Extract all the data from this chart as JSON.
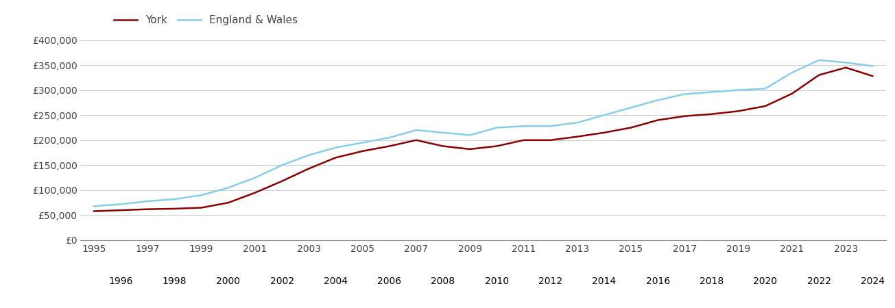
{
  "york_years": [
    1995,
    1996,
    1997,
    1998,
    1999,
    2000,
    2001,
    2002,
    2003,
    2004,
    2005,
    2006,
    2007,
    2008,
    2009,
    2010,
    2011,
    2012,
    2013,
    2014,
    2015,
    2016,
    2017,
    2018,
    2019,
    2020,
    2021,
    2022,
    2023,
    2024
  ],
  "york_values": [
    58000,
    60000,
    62000,
    63000,
    65000,
    75000,
    95000,
    118000,
    143000,
    165000,
    178000,
    188000,
    200000,
    188000,
    182000,
    188000,
    200000,
    200000,
    207000,
    215000,
    225000,
    240000,
    248000,
    252000,
    258000,
    268000,
    293000,
    330000,
    345000,
    328000
  ],
  "ew_years": [
    1995,
    1996,
    1997,
    1998,
    1999,
    2000,
    2001,
    2002,
    2003,
    2004,
    2005,
    2006,
    2007,
    2008,
    2009,
    2010,
    2011,
    2012,
    2013,
    2014,
    2015,
    2016,
    2017,
    2018,
    2019,
    2020,
    2021,
    2022,
    2023,
    2024
  ],
  "ew_values": [
    68000,
    72000,
    78000,
    82000,
    90000,
    105000,
    125000,
    150000,
    170000,
    185000,
    195000,
    205000,
    220000,
    215000,
    210000,
    225000,
    228000,
    228000,
    235000,
    250000,
    265000,
    280000,
    292000,
    296000,
    300000,
    303000,
    335000,
    360000,
    355000,
    348000
  ],
  "york_color": "#8B0000",
  "ew_color": "#87CEEB",
  "york_label": "York",
  "ew_label": "England & Wales",
  "ylim": [
    0,
    400000
  ],
  "yticks": [
    0,
    50000,
    100000,
    150000,
    200000,
    250000,
    300000,
    350000,
    400000
  ],
  "ytick_labels": [
    "£0",
    "£50,000",
    "£100,000",
    "£150,000",
    "£200,000",
    "£250,000",
    "£300,000",
    "£350,000",
    "£400,000"
  ],
  "xlim_min": 1994.5,
  "xlim_max": 2024.5,
  "odd_xticks": [
    1995,
    1997,
    1999,
    2001,
    2003,
    2005,
    2007,
    2009,
    2011,
    2013,
    2015,
    2017,
    2019,
    2021,
    2023
  ],
  "even_xticks": [
    1996,
    1998,
    2000,
    2002,
    2004,
    2006,
    2008,
    2010,
    2012,
    2014,
    2016,
    2018,
    2020,
    2022,
    2024
  ],
  "background_color": "#ffffff",
  "grid_color": "#cccccc",
  "line_width": 1.8,
  "legend_fontsize": 11,
  "tick_fontsize": 10,
  "tick_color": "#444444"
}
